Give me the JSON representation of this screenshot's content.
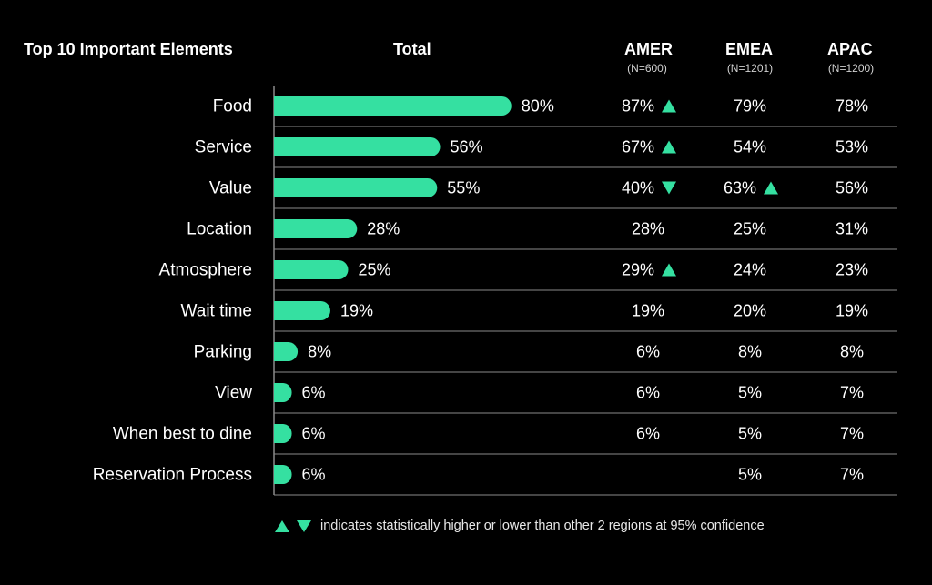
{
  "headers": {
    "elements": "Top 10 Important Elements",
    "total": "Total",
    "amer": "AMER",
    "amer_n": "(N=600)",
    "emea": "EMEA",
    "emea_n": "(N=1201)",
    "apac": "APAC",
    "apac_n": "(N=1200)"
  },
  "legend_text": "indicates statistically higher or lower than other 2 regions at 95% confidence",
  "colors": {
    "accent": "#35E0A1",
    "background": "#000000",
    "text": "#FFFFFF",
    "divider": "#8A8A8A"
  },
  "chart_data": {
    "type": "bar",
    "orientation": "horizontal",
    "title": "Top 10 Important Elements",
    "value_unit": "%",
    "xlim": [
      0,
      100
    ],
    "categories": [
      "Food",
      "Service",
      "Value",
      "Location",
      "Atmosphere",
      "Wait time",
      "Parking",
      "View",
      "When best to dine",
      "Reservation Process"
    ],
    "series": [
      {
        "name": "Total",
        "values": [
          80,
          56,
          55,
          28,
          25,
          19,
          8,
          6,
          6,
          6
        ]
      }
    ],
    "regions": [
      {
        "name": "AMER",
        "n": "(N=600)",
        "values": [
          "87%",
          "67%",
          "40%",
          "28%",
          "29%",
          "19%",
          "6%",
          "6%",
          "6%",
          ""
        ],
        "significance": [
          "up",
          "up",
          "down",
          "",
          "up",
          "",
          "",
          "",
          "",
          ""
        ]
      },
      {
        "name": "EMEA",
        "n": "(N=1201)",
        "values": [
          "79%",
          "54%",
          "63%",
          "25%",
          "24%",
          "20%",
          "8%",
          "5%",
          "5%",
          "5%"
        ],
        "significance": [
          "",
          "",
          "up",
          "",
          "",
          "",
          "",
          "",
          "",
          ""
        ]
      },
      {
        "name": "APAC",
        "n": "(N=1200)",
        "values": [
          "78%",
          "53%",
          "56%",
          "31%",
          "23%",
          "19%",
          "8%",
          "7%",
          "7%",
          "7%"
        ],
        "significance": [
          "",
          "",
          "",
          "",
          "",
          "",
          "",
          "",
          "",
          ""
        ]
      }
    ]
  }
}
